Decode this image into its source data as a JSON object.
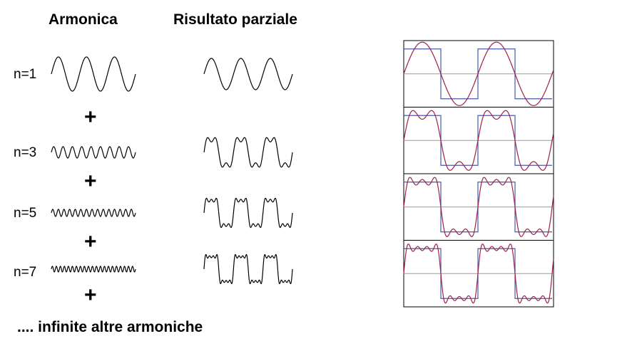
{
  "headers": {
    "harmonic": "Armonica",
    "partial": "Risultato parziale"
  },
  "rows": [
    {
      "n": 1,
      "label": "n=1"
    },
    {
      "n": 3,
      "label": "n=3"
    },
    {
      "n": 5,
      "label": "n=5"
    },
    {
      "n": 7,
      "label": "n=7"
    }
  ],
  "plus_symbol": "+",
  "footer": ".... infinite altre armoniche",
  "colors": {
    "square": "#4a5aa8",
    "approx": "#a0204a",
    "axis": "#9a9a9a",
    "wave": "#000000"
  }
}
